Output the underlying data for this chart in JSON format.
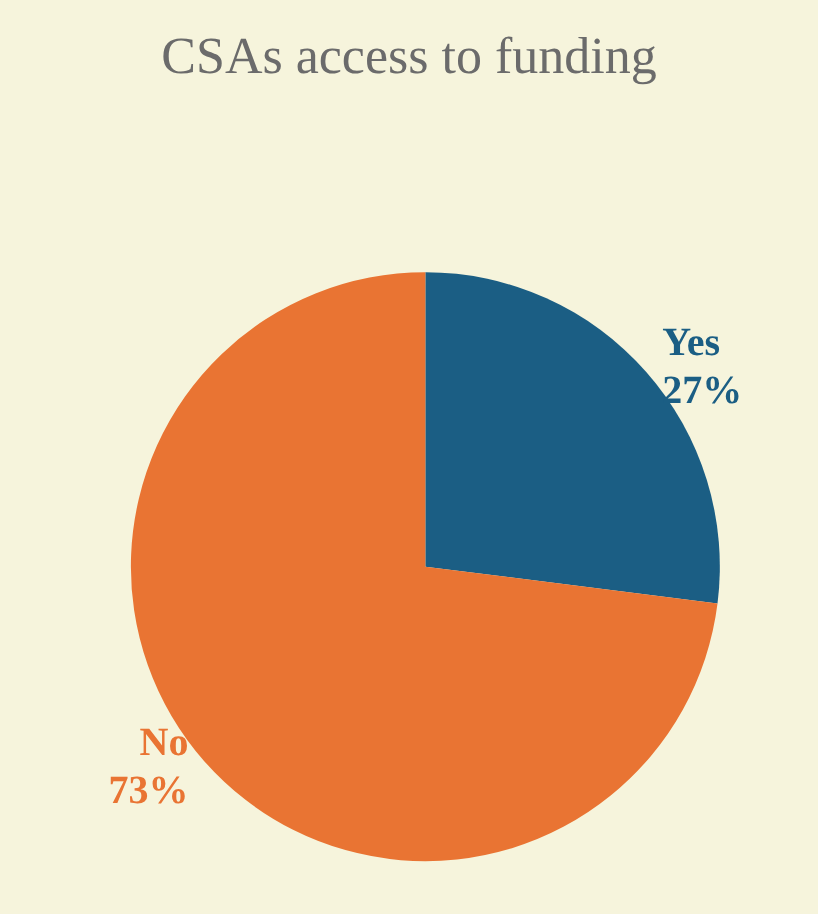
{
  "chart_data": {
    "type": "pie",
    "title": "CSAs access to funding",
    "categories": [
      "Yes",
      "No"
    ],
    "values": [
      27,
      73
    ],
    "value_labels": [
      "27%",
      "73%"
    ],
    "colors": [
      "#1b5e84",
      "#e97433"
    ],
    "legend": false
  }
}
